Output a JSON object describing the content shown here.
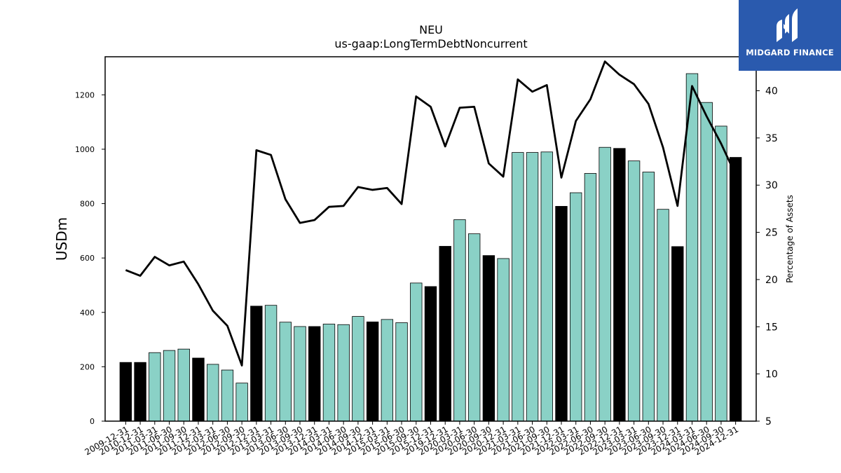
{
  "chart_data": {
    "type": "bar",
    "title": "NEU",
    "subtitle": "us-gaap:LongTermDebtNoncurrent",
    "ylabel": "USDm",
    "y2label": "Percentage of Assets",
    "ylim": [
      0,
      1340
    ],
    "y2lim": [
      5,
      43.6
    ],
    "yticks": [
      0,
      200,
      400,
      600,
      800,
      1000,
      1200
    ],
    "y2ticks": [
      5,
      10,
      15,
      20,
      25,
      30,
      35,
      40
    ],
    "categories": [
      "2009-12-31",
      "2010-12-31",
      "2011-03-31",
      "2011-06-30",
      "2011-09-30",
      "2011-12-31",
      "2012-03-31",
      "2012-06-30",
      "2012-09-30",
      "2012-12-31",
      "2013-03-31",
      "2013-06-30",
      "2013-09-30",
      "2013-12-31",
      "2014-03-31",
      "2014-06-30",
      "2014-09-30",
      "2014-12-31",
      "2015-03-31",
      "2015-06-30",
      "2015-09-30",
      "2015-12-31",
      "2019-12-31",
      "2020-03-31",
      "2020-06-30",
      "2020-09-30",
      "2020-12-31",
      "2021-03-31",
      "2021-06-30",
      "2021-09-30",
      "2021-12-31",
      "2022-03-31",
      "2022-06-30",
      "2022-09-30",
      "2022-12-31",
      "2023-03-31",
      "2023-06-30",
      "2023-09-30",
      "2023-12-31",
      "2024-03-31",
      "2024-06-30",
      "2024-09-30",
      "2024-12-31"
    ],
    "series": [
      {
        "type": "bar",
        "values": [
          216,
          216,
          252,
          260,
          265,
          232,
          209,
          188,
          140,
          423,
          426,
          364,
          348,
          348,
          357,
          355,
          385,
          365,
          374,
          362,
          508,
          495,
          643,
          741,
          689,
          609,
          598,
          988,
          988,
          990,
          790,
          840,
          911,
          1007,
          1003,
          957,
          916,
          779,
          642,
          1278,
          1172,
          1085,
          970
        ],
        "highlight": [
          0,
          1,
          5,
          9,
          13,
          17,
          21,
          22,
          25,
          30,
          34,
          38,
          42
        ],
        "bar_color": "#8ad1c6",
        "highlight_color": "#000000"
      },
      {
        "type": "line",
        "axis": "right",
        "color": "#000000",
        "values": [
          21.0,
          20.4,
          22.4,
          21.5,
          21.9,
          19.5,
          16.7,
          15.1,
          10.9,
          33.7,
          33.2,
          28.5,
          26.0,
          26.3,
          27.7,
          27.8,
          29.8,
          29.5,
          29.7,
          28.0,
          39.4,
          38.3,
          34.1,
          38.2,
          38.3,
          32.3,
          30.9,
          41.2,
          39.9,
          40.6,
          30.8,
          36.8,
          39.1,
          43.1,
          41.7,
          40.7,
          38.6,
          34.0,
          27.8,
          40.5,
          37.3,
          34.4,
          31.1
        ]
      }
    ]
  },
  "logo": {
    "text": "MIDGARD FINANCE",
    "icon": "midgard-logo-icon",
    "bg_color": "#2a5aae"
  }
}
